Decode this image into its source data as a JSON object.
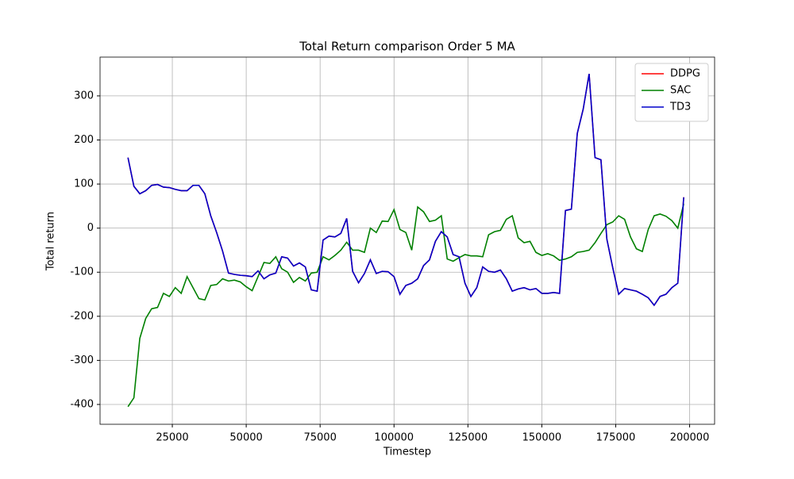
{
  "chart_data": {
    "type": "line",
    "title": "Total Return comparison Order 5 MA",
    "x_label": "Timestep",
    "y_label": "Total return",
    "x": [
      10000,
      12000,
      14000,
      16000,
      18000,
      20000,
      22000,
      24000,
      26000,
      28000,
      30000,
      32000,
      34000,
      36000,
      38000,
      40000,
      42000,
      44000,
      46000,
      48000,
      50000,
      52000,
      54000,
      56000,
      58000,
      60000,
      62000,
      64000,
      66000,
      68000,
      70000,
      72000,
      74000,
      76000,
      78000,
      80000,
      82000,
      84000,
      86000,
      88000,
      90000,
      92000,
      94000,
      96000,
      98000,
      100000,
      102000,
      104000,
      106000,
      108000,
      110000,
      112000,
      114000,
      116000,
      118000,
      120000,
      122000,
      124000,
      126000,
      128000,
      130000,
      132000,
      134000,
      136000,
      138000,
      140000,
      142000,
      144000,
      146000,
      148000,
      150000,
      152000,
      154000,
      156000,
      158000,
      160000,
      162000,
      164000,
      166000,
      168000,
      170000,
      172000,
      174000,
      176000,
      178000,
      180000,
      182000,
      184000,
      186000,
      188000,
      190000,
      192000,
      194000,
      196000,
      198000
    ],
    "series": [
      {
        "name": "DDPG",
        "color": "#ff0000",
        "values": [
          160,
          95,
          78,
          85,
          97,
          99,
          93,
          92,
          88,
          85,
          85,
          97,
          97,
          78,
          28,
          -10,
          -52,
          -102,
          -105,
          -107,
          -108,
          -110,
          -97,
          -115,
          -106,
          -102,
          -65,
          -68,
          -86,
          -79,
          -88,
          -140,
          -143,
          -27,
          -18,
          -20,
          -12,
          22,
          -98,
          -124,
          -103,
          -72,
          -103,
          -98,
          -99,
          -110,
          -150,
          -130,
          -125,
          -115,
          -85,
          -72,
          -30,
          -8,
          -20,
          -60,
          -65,
          -125,
          -155,
          -135,
          -88,
          -98,
          -100,
          -95,
          -115,
          -143,
          -138,
          -135,
          -140,
          -137,
          -148,
          -148,
          -146,
          -148,
          40,
          43,
          215,
          270,
          350,
          160,
          155,
          -25,
          -90,
          -150,
          -137,
          -140,
          -143,
          -150,
          -158,
          -175,
          -155,
          -150,
          -135,
          -125,
          70
        ]
      },
      {
        "name": "SAC",
        "color": "#008000",
        "values": [
          -405,
          -385,
          -250,
          -205,
          -183,
          -180,
          -148,
          -155,
          -135,
          -148,
          -110,
          -135,
          -160,
          -163,
          -130,
          -128,
          -115,
          -120,
          -118,
          -122,
          -133,
          -142,
          -110,
          -78,
          -80,
          -65,
          -92,
          -100,
          -123,
          -112,
          -120,
          -102,
          -100,
          -65,
          -72,
          -62,
          -50,
          -32,
          -50,
          -50,
          -55,
          0,
          -10,
          16,
          15,
          42,
          -3,
          -10,
          -50,
          48,
          37,
          15,
          18,
          28,
          -70,
          -75,
          -67,
          -60,
          -63,
          -63,
          -65,
          -15,
          -8,
          -5,
          20,
          28,
          -22,
          -33,
          -30,
          -55,
          -62,
          -58,
          -63,
          -73,
          -70,
          -65,
          -55,
          -53,
          -50,
          -33,
          -12,
          8,
          14,
          28,
          20,
          -20,
          -47,
          -53,
          -3,
          28,
          32,
          27,
          17,
          0,
          55
        ]
      },
      {
        "name": "TD3",
        "color": "#0000cc",
        "values": [
          160,
          95,
          78,
          85,
          97,
          99,
          93,
          92,
          88,
          85,
          85,
          97,
          97,
          78,
          28,
          -10,
          -52,
          -102,
          -105,
          -107,
          -108,
          -110,
          -97,
          -115,
          -106,
          -102,
          -65,
          -68,
          -86,
          -79,
          -88,
          -140,
          -143,
          -27,
          -18,
          -20,
          -12,
          22,
          -98,
          -124,
          -103,
          -72,
          -103,
          -98,
          -99,
          -110,
          -150,
          -130,
          -125,
          -115,
          -85,
          -72,
          -30,
          -8,
          -20,
          -60,
          -65,
          -125,
          -155,
          -135,
          -88,
          -98,
          -100,
          -95,
          -115,
          -143,
          -138,
          -135,
          -140,
          -137,
          -148,
          -148,
          -146,
          -148,
          40,
          43,
          215,
          270,
          350,
          160,
          155,
          -25,
          -90,
          -150,
          -137,
          -140,
          -143,
          -150,
          -158,
          -175,
          -155,
          -150,
          -135,
          -125,
          70
        ]
      }
    ],
    "xlim": [
      550,
      208450
    ],
    "ylim": [
      -445,
      388
    ],
    "xticks": [
      25000,
      50000,
      75000,
      100000,
      125000,
      150000,
      175000,
      200000
    ],
    "yticks": [
      -400,
      -300,
      -200,
      -100,
      0,
      100,
      200,
      300
    ],
    "grid": true,
    "legend": "upper right"
  }
}
